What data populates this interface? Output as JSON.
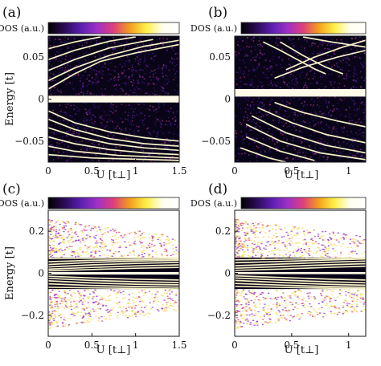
{
  "colors": {
    "colormap": [
      "#000000",
      "#2a0b57",
      "#5b1fb0",
      "#a030c8",
      "#e0407a",
      "#f4a01c",
      "#fff04a",
      "#fffff0",
      "#ffffff"
    ],
    "line": "#f5f0c8"
  },
  "chart_data": [
    {
      "panel_label": "(a)",
      "type": "heatmap",
      "colorbar_label": "DOS (a.u.)",
      "xlabel": "U [t⊥]",
      "ylabel": "Energy [t]",
      "xlim": [
        0,
        1.5
      ],
      "ylim": [
        -0.075,
        0.075
      ],
      "xticks": [
        0,
        0.5,
        1,
        1.5
      ],
      "xtick_labels": [
        "0",
        "0.5",
        "1",
        "1.5"
      ],
      "yticks": [
        -0.05,
        0,
        0.05
      ],
      "ytick_labels": [
        "−0.05",
        "0",
        "0.05"
      ],
      "gap_band": [
        -0.004,
        0.004
      ],
      "series": [
        {
          "values": [
            [
              0,
              0.012
            ],
            [
              0.15,
              0.021
            ],
            [
              0.3,
              0.03
            ],
            [
              0.6,
              0.045
            ],
            [
              1.0,
              0.055
            ],
            [
              1.5,
              0.065
            ]
          ]
        },
        {
          "values": [
            [
              0,
              0.022
            ],
            [
              0.3,
              0.037
            ],
            [
              0.7,
              0.052
            ],
            [
              1.1,
              0.063
            ],
            [
              1.5,
              0.07
            ]
          ]
        },
        {
          "values": [
            [
              0,
              0.034
            ],
            [
              0.3,
              0.047
            ],
            [
              0.7,
              0.061
            ],
            [
              1.2,
              0.071
            ]
          ]
        },
        {
          "values": [
            [
              0,
              0.047
            ],
            [
              0.3,
              0.058
            ],
            [
              0.7,
              0.069
            ],
            [
              1.0,
              0.074
            ]
          ]
        },
        {
          "values": [
            [
              0,
              0.06
            ],
            [
              0.3,
              0.068
            ],
            [
              0.6,
              0.074
            ]
          ]
        },
        {
          "values": [
            [
              0,
              -0.014
            ],
            [
              0.3,
              -0.028
            ],
            [
              0.7,
              -0.039
            ],
            [
              1.1,
              -0.046
            ],
            [
              1.5,
              -0.05
            ]
          ]
        },
        {
          "values": [
            [
              0,
              -0.024
            ],
            [
              0.3,
              -0.036
            ],
            [
              0.7,
              -0.047
            ],
            [
              1.1,
              -0.053
            ],
            [
              1.5,
              -0.056
            ]
          ]
        },
        {
          "values": [
            [
              0,
              -0.034
            ],
            [
              0.3,
              -0.044
            ],
            [
              0.7,
              -0.053
            ],
            [
              1.1,
              -0.058
            ],
            [
              1.5,
              -0.061
            ]
          ]
        },
        {
          "values": [
            [
              0,
              -0.045
            ],
            [
              0.3,
              -0.053
            ],
            [
              0.7,
              -0.06
            ],
            [
              1.1,
              -0.064
            ],
            [
              1.5,
              -0.066
            ]
          ]
        },
        {
          "values": [
            [
              0,
              -0.056
            ],
            [
              0.3,
              -0.062
            ],
            [
              0.8,
              -0.067
            ],
            [
              1.5,
              -0.07
            ]
          ]
        },
        {
          "values": [
            [
              0,
              -0.066
            ],
            [
              0.5,
              -0.07
            ],
            [
              1.5,
              -0.073
            ]
          ]
        }
      ]
    },
    {
      "panel_label": "(b)",
      "type": "heatmap",
      "colorbar_label": "DOS (a.u.)",
      "xlabel": "U [t⊥]",
      "ylabel": "",
      "xlim": [
        0,
        1.15
      ],
      "ylim": [
        -0.075,
        0.075
      ],
      "xticks": [
        0,
        0.5,
        1
      ],
      "xtick_labels": [
        "0",
        "0.5",
        "1"
      ],
      "yticks": [
        -0.05,
        0,
        0.05
      ],
      "ytick_labels": [
        "−0.05",
        "0",
        "0.05"
      ],
      "gap_band": [
        0.003,
        0.012
      ],
      "series": [
        {
          "values": [
            [
              0.25,
              0.068
            ],
            [
              0.4,
              0.058
            ],
            [
              0.55,
              0.047
            ],
            [
              0.7,
              0.036
            ],
            [
              0.8,
              0.03
            ]
          ]
        },
        {
          "values": [
            [
              0.4,
              0.068
            ],
            [
              0.6,
              0.052
            ],
            [
              0.8,
              0.038
            ],
            [
              0.95,
              0.03
            ]
          ]
        },
        {
          "values": [
            [
              0.45,
              0.035
            ],
            [
              0.7,
              0.05
            ],
            [
              0.95,
              0.062
            ],
            [
              1.15,
              0.07
            ]
          ]
        },
        {
          "values": [
            [
              0.35,
              0.025
            ],
            [
              0.6,
              0.038
            ],
            [
              0.9,
              0.05
            ],
            [
              1.15,
              0.058
            ]
          ]
        },
        {
          "values": [
            [
              0.6,
              0.074
            ],
            [
              0.85,
              0.068
            ],
            [
              1.15,
              0.062
            ]
          ]
        },
        {
          "values": [
            [
              0.35,
              -0.004
            ],
            [
              0.6,
              -0.016
            ],
            [
              0.9,
              -0.026
            ],
            [
              1.15,
              -0.033
            ]
          ]
        },
        {
          "values": [
            [
              0.2,
              -0.01
            ],
            [
              0.5,
              -0.028
            ],
            [
              0.8,
              -0.042
            ],
            [
              1.15,
              -0.052
            ]
          ]
        },
        {
          "values": [
            [
              0.15,
              -0.02
            ],
            [
              0.45,
              -0.04
            ],
            [
              0.8,
              -0.055
            ],
            [
              1.15,
              -0.064
            ]
          ]
        },
        {
          "values": [
            [
              0.1,
              -0.03
            ],
            [
              0.4,
              -0.05
            ],
            [
              0.75,
              -0.064
            ],
            [
              1.15,
              -0.072
            ]
          ]
        },
        {
          "values": [
            [
              0.1,
              -0.045
            ],
            [
              0.4,
              -0.062
            ],
            [
              0.7,
              -0.073
            ]
          ]
        },
        {
          "values": [
            [
              0.05,
              -0.058
            ],
            [
              0.3,
              -0.07
            ],
            [
              0.45,
              -0.075
            ]
          ]
        }
      ]
    },
    {
      "panel_label": "(c)",
      "type": "heatmap",
      "colorbar_label": "DOS (a.u.)",
      "xlabel": "U [t⊥]",
      "ylabel": "Energy [t]",
      "xlim": [
        0,
        1.5
      ],
      "ylim": [
        -0.3,
        0.3
      ],
      "xticks": [
        0,
        0.5,
        1,
        1.5
      ],
      "xtick_labels": [
        "0",
        "0.5",
        "1",
        "1.5"
      ],
      "yticks": [
        -0.2,
        0,
        0.2
      ],
      "ytick_labels": [
        "−0.2",
        "0",
        "0.2"
      ],
      "gap_band": [
        -0.006,
        0.006
      ],
      "series": [
        {
          "values": [
            [
              0,
              0.012
            ],
            [
              0.5,
              0.018
            ],
            [
              1.0,
              0.024
            ],
            [
              1.5,
              0.028
            ]
          ]
        },
        {
          "values": [
            [
              0,
              0.02
            ],
            [
              0.5,
              0.028
            ],
            [
              1.0,
              0.035
            ],
            [
              1.5,
              0.04
            ]
          ]
        },
        {
          "values": [
            [
              0,
              0.03
            ],
            [
              0.5,
              0.04
            ],
            [
              1.0,
              0.047
            ],
            [
              1.5,
              0.052
            ]
          ]
        },
        {
          "values": [
            [
              0,
              0.042
            ],
            [
              0.5,
              0.052
            ],
            [
              1.0,
              0.058
            ],
            [
              1.5,
              0.062
            ]
          ]
        },
        {
          "values": [
            [
              0,
              0.055
            ],
            [
              0.5,
              0.062
            ],
            [
              1.5,
              0.068
            ]
          ]
        },
        {
          "values": [
            [
              0,
              0.07
            ],
            [
              0.6,
              0.072
            ],
            [
              1.5,
              0.074
            ]
          ]
        },
        {
          "values": [
            [
              0,
              -0.014
            ],
            [
              0.5,
              -0.022
            ],
            [
              1.0,
              -0.028
            ],
            [
              1.5,
              -0.032
            ]
          ]
        },
        {
          "values": [
            [
              0,
              -0.024
            ],
            [
              0.5,
              -0.034
            ],
            [
              1.0,
              -0.04
            ],
            [
              1.5,
              -0.044
            ]
          ]
        },
        {
          "values": [
            [
              0,
              -0.036
            ],
            [
              0.5,
              -0.046
            ],
            [
              1.0,
              -0.052
            ],
            [
              1.5,
              -0.055
            ]
          ]
        },
        {
          "values": [
            [
              0,
              -0.05
            ],
            [
              0.5,
              -0.058
            ],
            [
              1.0,
              -0.063
            ],
            [
              1.5,
              -0.066
            ]
          ]
        },
        {
          "values": [
            [
              0,
              -0.066
            ],
            [
              0.6,
              -0.07
            ],
            [
              1.5,
              -0.075
            ]
          ]
        }
      ]
    },
    {
      "panel_label": "(d)",
      "type": "heatmap",
      "colorbar_label": "DOS (a.u.)",
      "xlabel": "U [t⊥]",
      "ylabel": "",
      "xlim": [
        0,
        1.15
      ],
      "ylim": [
        -0.3,
        0.3
      ],
      "xticks": [
        0,
        0.5,
        1
      ],
      "xtick_labels": [
        "0",
        "0.5",
        "1"
      ],
      "yticks": [
        -0.2,
        0,
        0.2
      ],
      "ytick_labels": [
        "−0.2",
        "0",
        "0.2"
      ],
      "gap_band": [
        -0.004,
        0.006
      ],
      "series": [
        {
          "values": [
            [
              0,
              0.014
            ],
            [
              0.4,
              0.02
            ],
            [
              0.8,
              0.028
            ],
            [
              1.15,
              0.034
            ]
          ]
        },
        {
          "values": [
            [
              0,
              0.024
            ],
            [
              0.4,
              0.032
            ],
            [
              0.8,
              0.04
            ],
            [
              1.15,
              0.046
            ]
          ]
        },
        {
          "values": [
            [
              0,
              0.036
            ],
            [
              0.4,
              0.044
            ],
            [
              0.8,
              0.052
            ],
            [
              1.15,
              0.058
            ]
          ]
        },
        {
          "values": [
            [
              0,
              0.05
            ],
            [
              0.4,
              0.056
            ],
            [
              0.8,
              0.063
            ],
            [
              1.15,
              0.068
            ]
          ]
        },
        {
          "values": [
            [
              0,
              0.064
            ],
            [
              0.5,
              0.068
            ],
            [
              1.15,
              0.074
            ]
          ]
        },
        {
          "values": [
            [
              0,
              -0.012
            ],
            [
              0.4,
              -0.02
            ],
            [
              0.8,
              -0.027
            ],
            [
              1.15,
              -0.032
            ]
          ]
        },
        {
          "values": [
            [
              0,
              -0.022
            ],
            [
              0.4,
              -0.032
            ],
            [
              0.8,
              -0.04
            ],
            [
              1.15,
              -0.045
            ]
          ]
        },
        {
          "values": [
            [
              0,
              -0.034
            ],
            [
              0.4,
              -0.044
            ],
            [
              0.8,
              -0.052
            ],
            [
              1.15,
              -0.057
            ]
          ]
        },
        {
          "values": [
            [
              0,
              -0.048
            ],
            [
              0.4,
              -0.056
            ],
            [
              0.8,
              -0.063
            ],
            [
              1.15,
              -0.067
            ]
          ]
        },
        {
          "values": [
            [
              0,
              -0.062
            ],
            [
              0.5,
              -0.068
            ],
            [
              1.15,
              -0.074
            ]
          ]
        }
      ]
    }
  ]
}
